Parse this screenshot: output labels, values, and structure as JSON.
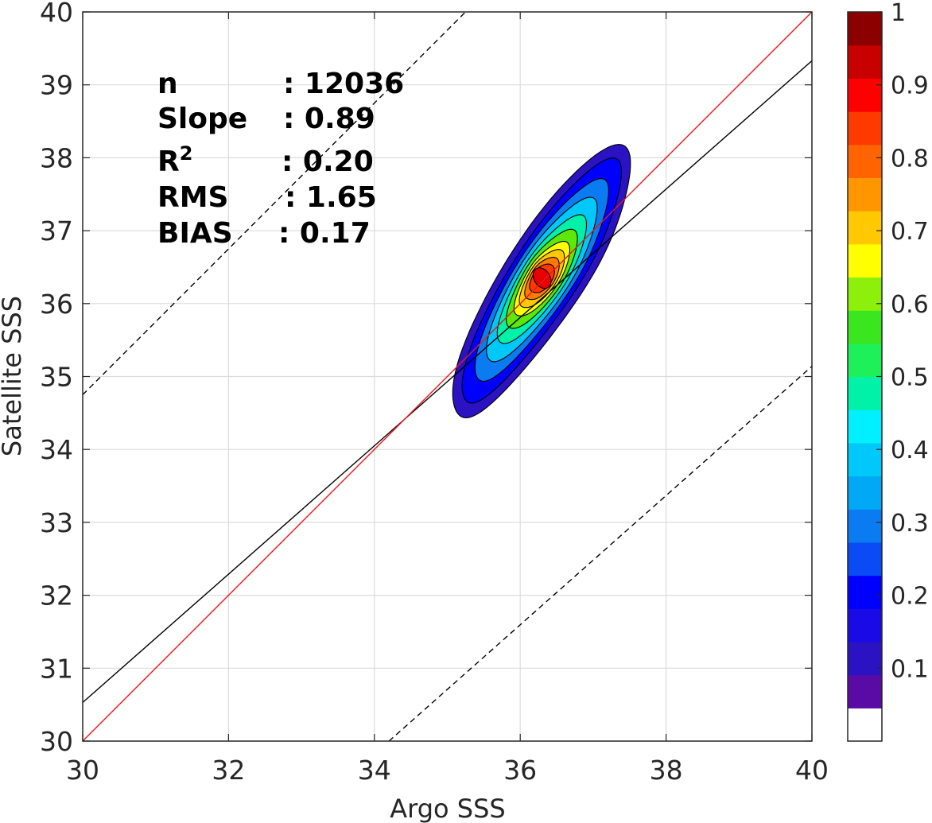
{
  "chart_data": {
    "type": "contour-density-scatter",
    "xlabel": "Argo SSS",
    "ylabel": "Satellite SSS",
    "xlim": [
      30,
      40
    ],
    "ylim": [
      30,
      40
    ],
    "x_ticks": [
      30,
      32,
      34,
      36,
      38,
      40
    ],
    "y_ticks": [
      30,
      31,
      32,
      33,
      34,
      35,
      36,
      37,
      38,
      39,
      40
    ],
    "grid": true,
    "stats": {
      "n_label": "n",
      "n_value": ": 12036",
      "slope_label": "Slope",
      "slope_value": ": 0.89",
      "r2_label": "R",
      "r2_sup": "2",
      "r2_value": ": 0.20",
      "rms_label": "RMS",
      "rms_value": ": 1.65",
      "bias_label": "BIAS",
      "bias_value": ": 0.17"
    },
    "lines": {
      "one_to_one": {
        "points": [
          [
            30,
            30
          ],
          [
            40,
            40
          ]
        ],
        "color": "#e31a1c",
        "style": "solid"
      },
      "regression": {
        "points": [
          [
            30,
            30.53
          ],
          [
            40,
            39.33
          ]
        ],
        "color": "#000000",
        "style": "solid"
      },
      "upper_bound": {
        "points": [
          [
            30,
            34.75
          ],
          [
            35.25,
            40
          ]
        ],
        "color": "#000000",
        "style": "dashed"
      },
      "lower_bound": {
        "points": [
          [
            34.2,
            30
          ],
          [
            40,
            35.14
          ]
        ],
        "color": "#000000",
        "style": "dashed"
      }
    },
    "density": {
      "center": [
        36.3,
        36.35
      ],
      "major_axis_deg": 57,
      "shift": [
        -0.05,
        -0.1
      ],
      "levels": [
        {
          "level": 0.05,
          "a": 2.15,
          "b": 0.55,
          "color": "#2b12c2"
        },
        {
          "level": 0.15,
          "a": 1.9,
          "b": 0.46,
          "color": "#0000ff"
        },
        {
          "level": 0.25,
          "a": 1.55,
          "b": 0.4,
          "color": "#0a7bf0"
        },
        {
          "level": 0.35,
          "a": 1.25,
          "b": 0.35,
          "color": "#00c8f8"
        },
        {
          "level": 0.45,
          "a": 0.98,
          "b": 0.3,
          "color": "#00f2a8"
        },
        {
          "level": 0.55,
          "a": 0.76,
          "b": 0.26,
          "color": "#5ee80a"
        },
        {
          "level": 0.65,
          "a": 0.58,
          "b": 0.22,
          "color": "#ffff00"
        },
        {
          "level": 0.72,
          "a": 0.46,
          "b": 0.19,
          "color": "#ffc800"
        },
        {
          "level": 0.8,
          "a": 0.34,
          "b": 0.16,
          "color": "#ff7b00"
        },
        {
          "level": 0.88,
          "a": 0.23,
          "b": 0.13,
          "color": "#ff3a00"
        }
      ]
    },
    "colorbar": {
      "ticks": [
        "0.1",
        "0.2",
        "0.3",
        "0.4",
        "0.5",
        "0.6",
        "0.7",
        "0.8",
        "0.9",
        "1"
      ],
      "tick_values": [
        0.1,
        0.2,
        0.3,
        0.4,
        0.5,
        0.6,
        0.7,
        0.8,
        0.9,
        1.0
      ],
      "colors": [
        "#ffffff",
        "#5a0aa5",
        "#2b12c2",
        "#1a0ae6",
        "#0000ff",
        "#0a4bf5",
        "#0a7bf0",
        "#00a8f5",
        "#00c8f8",
        "#00f0ff",
        "#00f2a8",
        "#1ef05a",
        "#3ae61e",
        "#8cf00a",
        "#ffff00",
        "#ffc800",
        "#ff9600",
        "#ff6400",
        "#ff3a00",
        "#ff0000",
        "#c80000",
        "#8c0000"
      ]
    }
  }
}
